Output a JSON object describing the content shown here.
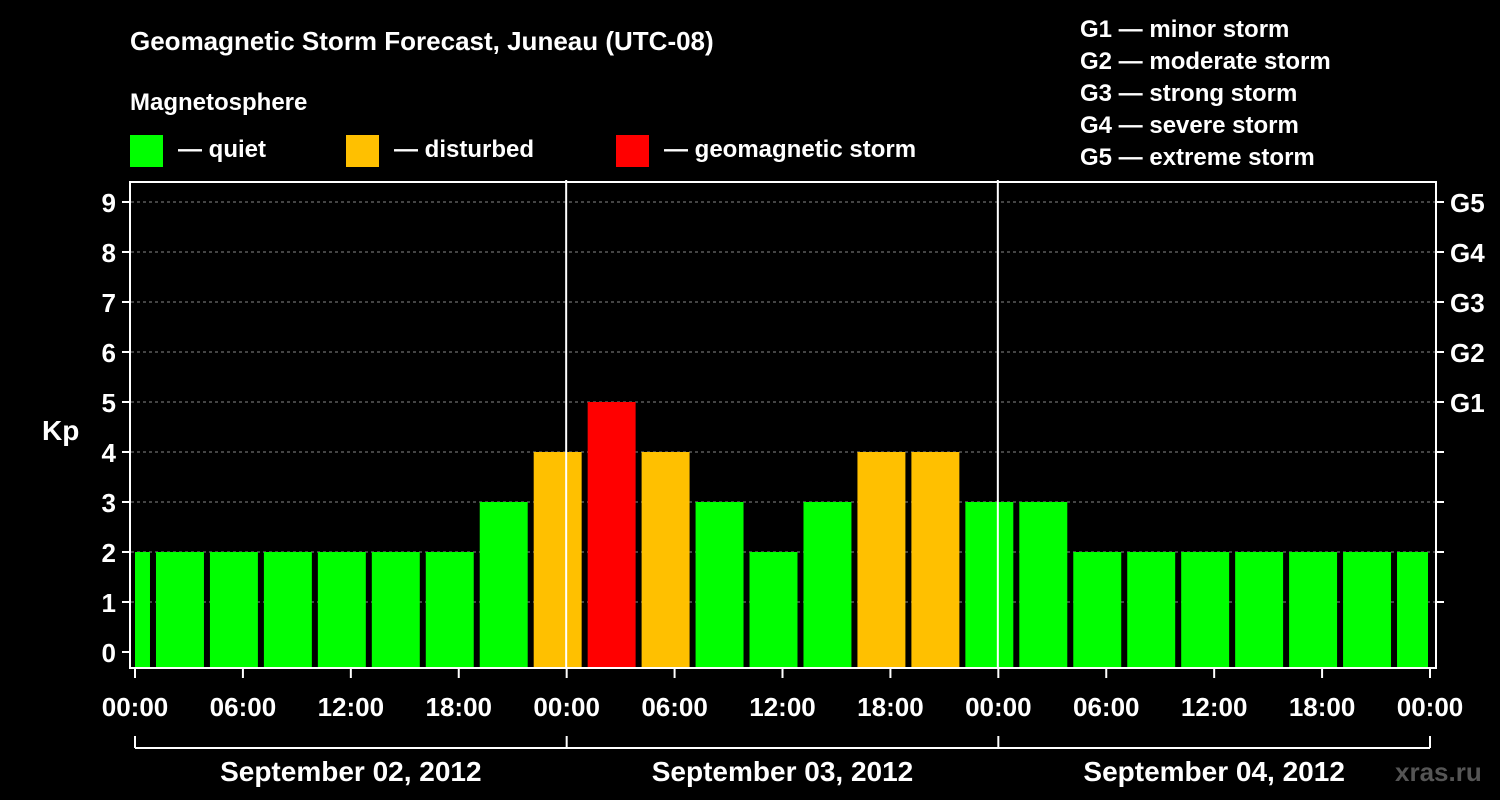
{
  "title": "Geomagnetic Storm Forecast, Juneau (UTC-08)",
  "legend": {
    "heading": "Magnetosphere",
    "items": [
      {
        "label": "— quiet",
        "color": "#00ff00"
      },
      {
        "label": "— disturbed",
        "color": "#ffc000"
      },
      {
        "label": "— geomagnetic storm",
        "color": "#ff0000"
      }
    ]
  },
  "storm_scale": [
    "G1 — minor storm",
    "G2 — moderate storm",
    "G3 — strong storm",
    "G4 — severe storm",
    "G5 — extreme storm"
  ],
  "watermark": "xras.ru",
  "colors": {
    "quiet": "#00ff00",
    "disturbed": "#ffc000",
    "storm": "#ff0000",
    "background": "#000000",
    "axis": "#ffffff"
  },
  "chart_data": {
    "type": "bar",
    "ylabel": "Kp",
    "ylim": [
      0,
      9
    ],
    "x_range_hours": [
      0,
      72
    ],
    "yticks": [
      0,
      1,
      2,
      3,
      4,
      5,
      6,
      7,
      8,
      9
    ],
    "right_ticks": [
      {
        "kp": 5,
        "label": "G1"
      },
      {
        "kp": 6,
        "label": "G2"
      },
      {
        "kp": 7,
        "label": "G3"
      },
      {
        "kp": 8,
        "label": "G4"
      },
      {
        "kp": 9,
        "label": "G5"
      }
    ],
    "xticks": [
      {
        "hour": 0,
        "label": "00:00"
      },
      {
        "hour": 6,
        "label": "06:00"
      },
      {
        "hour": 12,
        "label": "12:00"
      },
      {
        "hour": 18,
        "label": "18:00"
      },
      {
        "hour": 24,
        "label": "00:00"
      },
      {
        "hour": 30,
        "label": "06:00"
      },
      {
        "hour": 36,
        "label": "12:00"
      },
      {
        "hour": 42,
        "label": "18:00"
      },
      {
        "hour": 48,
        "label": "00:00"
      },
      {
        "hour": 54,
        "label": "06:00"
      },
      {
        "hour": 60,
        "label": "12:00"
      },
      {
        "hour": 66,
        "label": "18:00"
      },
      {
        "hour": 72,
        "label": "00:00"
      }
    ],
    "day_separators": [
      24,
      48
    ],
    "days": [
      {
        "label": "September 02, 2012",
        "start": 0,
        "end": 24
      },
      {
        "label": "September 03, 2012",
        "start": 24,
        "end": 48
      },
      {
        "label": "September 04, 2012",
        "start": 48,
        "end": 72
      }
    ],
    "bars": [
      {
        "start": 0,
        "end": 1,
        "kp": 2,
        "level": "quiet"
      },
      {
        "start": 1,
        "end": 4,
        "kp": 2,
        "level": "quiet"
      },
      {
        "start": 4,
        "end": 7,
        "kp": 2,
        "level": "quiet"
      },
      {
        "start": 7,
        "end": 10,
        "kp": 2,
        "level": "quiet"
      },
      {
        "start": 10,
        "end": 13,
        "kp": 2,
        "level": "quiet"
      },
      {
        "start": 13,
        "end": 16,
        "kp": 2,
        "level": "quiet"
      },
      {
        "start": 16,
        "end": 19,
        "kp": 2,
        "level": "quiet"
      },
      {
        "start": 19,
        "end": 22,
        "kp": 3,
        "level": "quiet"
      },
      {
        "start": 22,
        "end": 25,
        "kp": 4,
        "level": "disturbed"
      },
      {
        "start": 25,
        "end": 28,
        "kp": 5,
        "level": "storm"
      },
      {
        "start": 28,
        "end": 31,
        "kp": 4,
        "level": "disturbed"
      },
      {
        "start": 31,
        "end": 34,
        "kp": 3,
        "level": "quiet"
      },
      {
        "start": 34,
        "end": 37,
        "kp": 2,
        "level": "quiet"
      },
      {
        "start": 37,
        "end": 40,
        "kp": 3,
        "level": "quiet"
      },
      {
        "start": 40,
        "end": 43,
        "kp": 4,
        "level": "disturbed"
      },
      {
        "start": 43,
        "end": 46,
        "kp": 4,
        "level": "disturbed"
      },
      {
        "start": 46,
        "end": 49,
        "kp": 3,
        "level": "quiet"
      },
      {
        "start": 49,
        "end": 52,
        "kp": 3,
        "level": "quiet"
      },
      {
        "start": 52,
        "end": 55,
        "kp": 2,
        "level": "quiet"
      },
      {
        "start": 55,
        "end": 58,
        "kp": 2,
        "level": "quiet"
      },
      {
        "start": 58,
        "end": 61,
        "kp": 2,
        "level": "quiet"
      },
      {
        "start": 61,
        "end": 64,
        "kp": 2,
        "level": "quiet"
      },
      {
        "start": 64,
        "end": 67,
        "kp": 2,
        "level": "quiet"
      },
      {
        "start": 67,
        "end": 70,
        "kp": 2,
        "level": "quiet"
      },
      {
        "start": 70,
        "end": 72,
        "kp": 2,
        "level": "quiet"
      }
    ]
  }
}
